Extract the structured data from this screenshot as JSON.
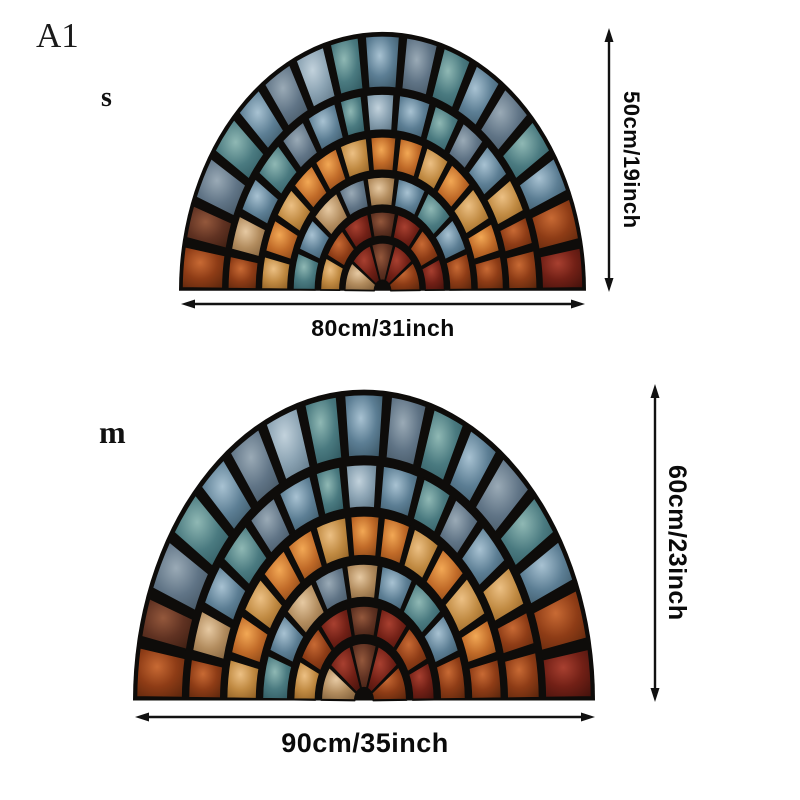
{
  "title_label": "A1",
  "sizes": [
    {
      "label": "s",
      "width_label": "80cm/31inch",
      "height_label": "50cm/19inch"
    },
    {
      "label": "m",
      "width_label": "90cm/35inch",
      "height_label": "60cm/23inch"
    }
  ],
  "mosaic": {
    "grout_color": "#0e0c0a",
    "palette": {
      "blue": [
        "#a8c2d2",
        "#5c7e94",
        "#35505f"
      ],
      "steel": [
        "#c2d2dc",
        "#8aa2b2",
        "#5a7282"
      ],
      "teal": [
        "#8fb8b4",
        "#4a7a80",
        "#2c545c"
      ],
      "slate": [
        "#9aaab6",
        "#607486",
        "#3e4f5c"
      ],
      "orange": [
        "#f2a855",
        "#c06a28",
        "#7e3f14"
      ],
      "amber": [
        "#ecc084",
        "#c08a42",
        "#8a5a20"
      ],
      "rust": [
        "#c86a34",
        "#8e3c16",
        "#5a250c"
      ],
      "red": [
        "#a84030",
        "#722016",
        "#45120c"
      ],
      "brown": [
        "#94583c",
        "#603222",
        "#3a1c10"
      ],
      "tan": [
        "#e6c9a2",
        "#b28c5e",
        "#7c5c38"
      ]
    },
    "rings": [
      {
        "r1": 157,
        "r2": 197,
        "stones": [
          "rust",
          "brown",
          "slate",
          "teal",
          "blue",
          "slate",
          "steel",
          "teal",
          "blue",
          "slate",
          "teal",
          "blue",
          "slate",
          "teal",
          "blue",
          "rust",
          "red"
        ]
      },
      {
        "r1": 124,
        "r2": 152,
        "stones": [
          "rust",
          "tan",
          "blue",
          "teal",
          "slate",
          "blue",
          "teal",
          "steel",
          "blue",
          "teal",
          "slate",
          "blue",
          "amber",
          "rust",
          "rust"
        ]
      },
      {
        "r1": 93,
        "r2": 119,
        "stones": [
          "amber",
          "orange",
          "amber",
          "orange",
          "orange",
          "amber",
          "orange",
          "orange",
          "amber",
          "orange",
          "amber",
          "orange",
          "rust"
        ]
      },
      {
        "r1": 66,
        "r2": 88,
        "stones": [
          "teal",
          "blue",
          "tan",
          "slate",
          "tan",
          "blue",
          "teal",
          "blue",
          "rust"
        ]
      },
      {
        "r1": 42,
        "r2": 61,
        "stones": [
          "amber",
          "rust",
          "red",
          "brown",
          "red",
          "rust",
          "red"
        ]
      },
      {
        "r1": 8,
        "r2": 37,
        "stones": [
          "tan",
          "red",
          "brown",
          "red",
          "rust"
        ]
      }
    ]
  }
}
